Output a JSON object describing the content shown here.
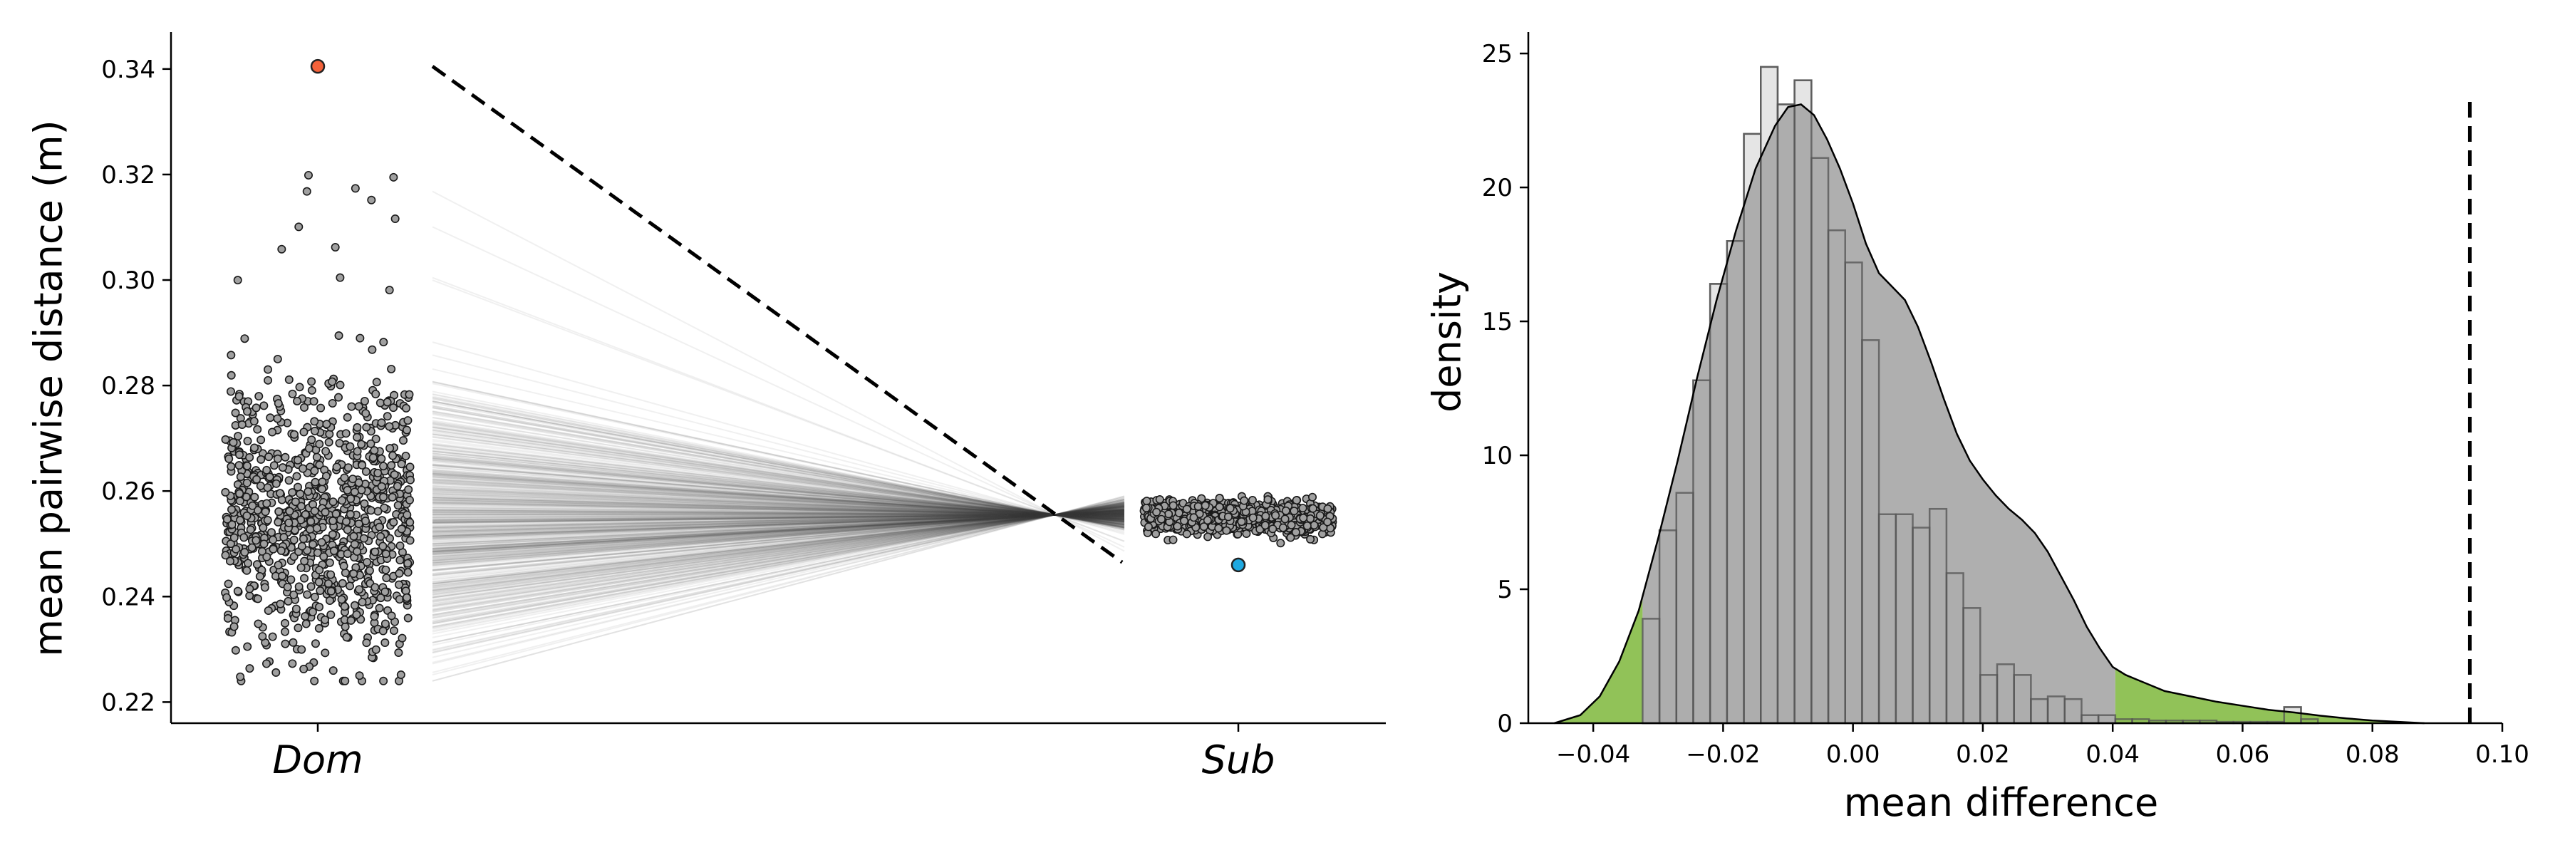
{
  "chart_data": [
    {
      "type": "scatter",
      "ylabel": "mean pairwise distance (m)",
      "xlabel": "",
      "categories": [
        "Dom",
        "Sub"
      ],
      "ylim": [
        0.216,
        0.347
      ],
      "yticks": [
        0.22,
        0.24,
        0.26,
        0.28,
        0.3,
        0.32,
        0.34
      ],
      "ytick_labels": [
        "0.22",
        "0.24",
        "0.26",
        "0.28",
        "0.30",
        "0.32",
        "0.34"
      ],
      "observed": {
        "Dom": 0.3405,
        "Sub": 0.246
      },
      "null_distribution": {
        "Dom": {
          "n": 1000,
          "center": 0.254,
          "spread": 0.013,
          "min": 0.224,
          "max": 0.321
        },
        "Sub": {
          "n": 1000,
          "center": 0.255,
          "spread": 0.0015,
          "min": 0.25,
          "max": 0.259
        }
      },
      "colors": {
        "observed_dom": "#f4623a",
        "observed_sub": "#1fa9e1",
        "null_points": "#a0a0a0",
        "null_lines": "#444444",
        "observed_line": "#000000"
      },
      "grid": false
    },
    {
      "type": "histogram",
      "xlabel": "mean difference",
      "ylabel": "density",
      "xlim": [
        -0.05,
        0.1
      ],
      "ylim": [
        0,
        25.8
      ],
      "xticks": [
        -0.04,
        -0.02,
        0.0,
        0.02,
        0.04,
        0.06,
        0.08,
        0.1
      ],
      "xtick_labels": [
        "−0.04",
        "−0.02",
        "0.00",
        "0.02",
        "0.04",
        "0.06",
        "0.08",
        "0.10"
      ],
      "yticks": [
        0,
        5,
        10,
        15,
        20,
        25
      ],
      "ytick_labels": [
        "0",
        "5",
        "10",
        "15",
        "20",
        "25"
      ],
      "bin_edges": [
        -0.0324,
        -0.0298,
        -0.0272,
        -0.0246,
        -0.022,
        -0.0194,
        -0.0168,
        -0.0142,
        -0.0116,
        -0.009,
        -0.0064,
        -0.0038,
        -0.0012,
        0.0014,
        0.004,
        0.0066,
        0.0092,
        0.0118,
        0.0144,
        0.017,
        0.0196,
        0.0222,
        0.0248,
        0.0274,
        0.03,
        0.0326,
        0.0352,
        0.0378,
        0.0404,
        0.043,
        0.0456,
        0.0482,
        0.0508,
        0.0534,
        0.056,
        0.0586,
        0.0612,
        0.0638,
        0.0664,
        0.069,
        0.0716
      ],
      "densities": [
        3.9,
        7.2,
        8.6,
        12.8,
        16.4,
        18.0,
        22.0,
        24.5,
        23.1,
        24.0,
        21.1,
        18.4,
        17.2,
        14.3,
        7.8,
        7.8,
        7.3,
        8.0,
        5.6,
        4.3,
        1.8,
        2.2,
        1.8,
        0.9,
        1.0,
        0.9,
        0.3,
        0.3,
        0.15,
        0.15,
        0.1,
        0.1,
        0.1,
        0.1,
        0.05,
        0.05,
        0.05,
        0.05,
        0.6,
        0.15
      ],
      "kde": {
        "x": [
          -0.046,
          -0.042,
          -0.039,
          -0.036,
          -0.033,
          -0.03,
          -0.027,
          -0.024,
          -0.021,
          -0.018,
          -0.015,
          -0.012,
          -0.01,
          -0.008,
          -0.006,
          -0.004,
          -0.002,
          0.0,
          0.002,
          0.004,
          0.006,
          0.008,
          0.01,
          0.012,
          0.014,
          0.016,
          0.018,
          0.02,
          0.022,
          0.024,
          0.026,
          0.028,
          0.03,
          0.032,
          0.034,
          0.036,
          0.038,
          0.04,
          0.042,
          0.044,
          0.046,
          0.048,
          0.05,
          0.053,
          0.056,
          0.06,
          0.064,
          0.068,
          0.072,
          0.076,
          0.08,
          0.084,
          0.088
        ],
        "y": [
          0.0,
          0.3,
          1.0,
          2.3,
          4.2,
          6.9,
          9.8,
          12.9,
          15.8,
          18.4,
          20.7,
          22.3,
          23.0,
          23.1,
          22.7,
          21.8,
          20.7,
          19.4,
          17.9,
          16.8,
          16.3,
          15.8,
          14.8,
          13.5,
          12.1,
          10.8,
          9.8,
          9.1,
          8.5,
          8.0,
          7.6,
          7.1,
          6.4,
          5.5,
          4.6,
          3.6,
          2.8,
          2.1,
          1.8,
          1.6,
          1.4,
          1.2,
          1.1,
          0.95,
          0.8,
          0.65,
          0.5,
          0.4,
          0.28,
          0.18,
          0.1,
          0.05,
          0.0
        ]
      },
      "tail_cutoffs": [
        -0.0324,
        0.0404
      ],
      "observed_difference": 0.095,
      "colors": {
        "bars_fill": "#e5e5e5",
        "bars_edge": "#7a7a7a",
        "kde_fill": "#a8a8a8",
        "tails": "#8bbf4f",
        "observed_line": "#000000"
      },
      "grid": false
    }
  ]
}
